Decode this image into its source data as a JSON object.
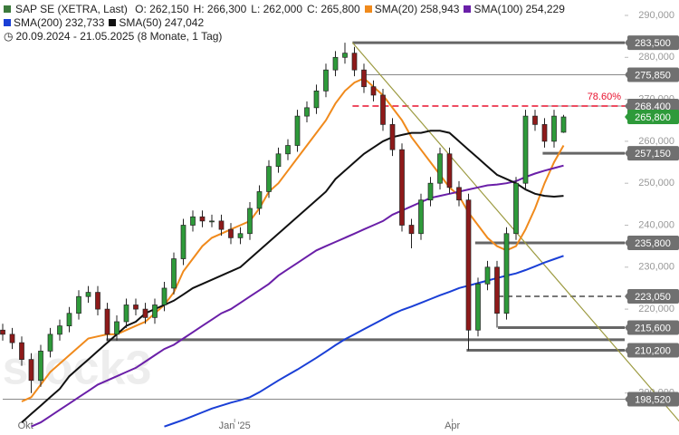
{
  "chart_data": {
    "type": "candlestick",
    "title": "SAP SE (XETRA, Last)",
    "quote": [
      {
        "value": 262.15,
        "label": "O: 262,150"
      },
      {
        "value": 266.3,
        "label": "H: 266,300"
      },
      {
        "value": 262.0,
        "label": "L: 262,000"
      },
      {
        "value": 265.8,
        "label": "C: 265,800"
      }
    ],
    "period": "20.09.2024 - 21.05.2025 (8 Monate, 1 Tag)",
    "watermark": "stock3",
    "up_color": "#2e9a3a",
    "down_color": "#8e1a1a",
    "open": [
      215,
      214,
      212,
      208,
      203,
      210,
      214,
      216,
      219,
      223,
      224,
      220,
      214,
      217,
      221,
      220,
      218,
      221,
      225,
      232,
      240,
      242,
      241,
      241,
      239,
      237,
      238,
      244,
      248,
      254,
      257,
      259,
      266,
      268,
      272,
      277,
      280,
      281,
      277,
      273,
      271,
      264,
      258,
      240,
      238,
      246,
      250,
      257,
      249,
      246,
      215,
      226,
      230,
      219,
      238,
      250,
      266,
      264,
      260,
      262.15
    ],
    "high": [
      216.5,
      215.5,
      213.5,
      209.5,
      211.5,
      215.5,
      217.5,
      220.5,
      224.5,
      225.5,
      225.5,
      221.5,
      218.5,
      222.5,
      222.5,
      221.5,
      222.5,
      226.5,
      233.5,
      241.5,
      243.5,
      243.5,
      242.5,
      242.5,
      240.5,
      239.5,
      245.5,
      249.5,
      255.5,
      258.5,
      260.5,
      267.5,
      269.5,
      273.5,
      278.5,
      281.5,
      283.5,
      282.5,
      278.5,
      274.5,
      272.5,
      265.5,
      259.5,
      241.5,
      247.5,
      251.5,
      258.5,
      258.5,
      250.5,
      247.5,
      227.5,
      231.5,
      231.5,
      239.5,
      251.5,
      267.5,
      267.5,
      265.5,
      267.5,
      266.3
    ],
    "low": [
      212.5,
      210.5,
      206.5,
      200,
      201.5,
      208.5,
      212.5,
      214.5,
      217.5,
      221.5,
      218.5,
      212.5,
      212.5,
      215.5,
      218.5,
      216.5,
      216.5,
      219.5,
      223.5,
      230.5,
      238.5,
      239.5,
      239.5,
      237.5,
      235.5,
      235.5,
      236.5,
      242.5,
      246.5,
      252.5,
      255.5,
      257.5,
      264.5,
      266.5,
      270.5,
      275.5,
      278.5,
      275.5,
      271.5,
      269.5,
      262.5,
      256.5,
      238.5,
      234.5,
      236.5,
      244.5,
      248.5,
      247.5,
      244.5,
      210.2,
      213.5,
      224.5,
      215.6,
      217.5,
      236.5,
      248.5,
      262.5,
      258.5,
      258.5,
      262.0
    ],
    "close": [
      214,
      212,
      208,
      203,
      210,
      214,
      216,
      219,
      223,
      224,
      220,
      214,
      217,
      221,
      220,
      218,
      221,
      225,
      232,
      240,
      242,
      241,
      241,
      239,
      237,
      238,
      244,
      248,
      254,
      257,
      259,
      266,
      268,
      272,
      277,
      280,
      281,
      277,
      273,
      271,
      264,
      258,
      240,
      238,
      246,
      250,
      257,
      249,
      246,
      215,
      226,
      230,
      219,
      238,
      250,
      266,
      264,
      260,
      266,
      265.8
    ],
    "series": [
      {
        "name": "SMA(20)",
        "color": "#f08a1c",
        "last": {
          "value": 258.943,
          "label": "258,943"
        },
        "values": [
          null,
          null,
          198,
          199,
          202,
          205,
          207,
          209,
          211,
          213,
          213.5,
          214,
          214,
          215,
          216,
          217,
          219,
          221,
          224,
          229,
          232,
          235,
          237,
          238,
          239,
          240,
          241,
          244,
          248,
          250,
          253,
          256,
          259,
          262,
          265,
          269,
          272,
          274,
          275,
          273,
          271,
          268,
          265,
          261,
          258,
          255,
          252,
          249,
          247,
          243,
          240,
          237,
          235,
          234,
          235,
          239,
          244,
          250,
          255,
          259
        ]
      },
      {
        "name": "SMA(100)",
        "color": "#6a1fa8",
        "last": {
          "value": 254.229,
          "label": "254,229"
        },
        "values": [
          null,
          null,
          null,
          192,
          193,
          194.5,
          196,
          197.5,
          199,
          200.5,
          202,
          203,
          204,
          205,
          206,
          207.5,
          209,
          210.5,
          211.5,
          213,
          214.5,
          216,
          217.5,
          219,
          220,
          221.5,
          223,
          224.5,
          226,
          228,
          229.5,
          231,
          232.5,
          234,
          235,
          236,
          237,
          238,
          239,
          240,
          241,
          242.5,
          243.5,
          244.5,
          245.5,
          246.5,
          247,
          247.5,
          248,
          248.5,
          249,
          249.5,
          249.7,
          250,
          250.5,
          251.5,
          252.3,
          253,
          253.6,
          254.2
        ]
      },
      {
        "name": "SMA(200)",
        "color": "#1a3fd6",
        "last": {
          "value": 232.733,
          "label": "232,733"
        },
        "values": [
          null,
          null,
          null,
          null,
          null,
          null,
          null,
          null,
          null,
          null,
          null,
          null,
          null,
          null,
          null,
          null,
          null,
          192,
          192.8,
          193.6,
          194.5,
          195.4,
          196.3,
          197,
          197.7,
          198.3,
          199,
          200.2,
          201.6,
          203,
          204.3,
          205.6,
          207,
          208.4,
          209.9,
          211.4,
          212.8,
          214,
          215.2,
          216.4,
          217.6,
          218.8,
          219.8,
          220.6,
          221.5,
          222.4,
          223.3,
          224.1,
          225,
          225.6,
          226.2,
          226.8,
          227.4,
          228,
          228.5,
          229.3,
          230.2,
          231.1,
          231.9,
          232.7
        ]
      },
      {
        "name": "SMA(50)",
        "color": "#111111",
        "last": {
          "value": 247.042,
          "label": "247,042"
        },
        "values": [
          null,
          null,
          193,
          195,
          197,
          199,
          201,
          204,
          206,
          208,
          210,
          212,
          214,
          216,
          217,
          219,
          220,
          221,
          222,
          223.5,
          225,
          226,
          227,
          228,
          229,
          230,
          232,
          234,
          236,
          238,
          240,
          242,
          244,
          246,
          248,
          251,
          253,
          255,
          257,
          258.5,
          260,
          261,
          261.5,
          262,
          262,
          262.5,
          262.5,
          262,
          260,
          258,
          256,
          254,
          252,
          251,
          250,
          248.5,
          247.5,
          247,
          246.8,
          247
        ]
      }
    ],
    "levels": [
      {
        "value": 283.5,
        "label": "283,500",
        "from": 36.8,
        "style": "bold"
      },
      {
        "value": 275.85,
        "label": "275,850",
        "from": 37.8,
        "style": "thin"
      },
      {
        "value": 268.4,
        "label": "268,400",
        "from": 56.6,
        "style": "thin"
      },
      {
        "value": 265.8,
        "label": "265,800",
        "from": 59,
        "style": "current"
      },
      {
        "value": 257.15,
        "label": "257,150",
        "from": 56.8,
        "style": "bold"
      },
      {
        "value": 235.8,
        "label": "235,800",
        "from": 49.7,
        "style": "bold"
      },
      {
        "value": 223.05,
        "label": "223,050",
        "from": 52.1,
        "style": "dashed"
      },
      {
        "value": 215.6,
        "label": "215,600",
        "from": 52.1,
        "style": "bold"
      },
      {
        "value": 212.7,
        "from": 10.9,
        "style": "bold"
      },
      {
        "value": 210.2,
        "label": "210,200",
        "from": 48.8,
        "style": "bold"
      },
      {
        "value": 198.52,
        "label": "198,520",
        "from": 0,
        "style": "thin"
      }
    ],
    "fib": {
      "level": 268.4,
      "from": 36.8,
      "color": "#e8112d",
      "ratio": {
        "value": 78.6,
        "label": "78.60%"
      }
    },
    "trendline": {
      "from": {
        "x": 36.8,
        "y": 283.5
      },
      "to": {
        "x": 71.2,
        "y": 193.2
      },
      "color": "#9c9a40"
    },
    "xticks": [
      {
        "value": 2.4,
        "label": "Okt"
      },
      {
        "value": 24.4,
        "label": "Jan '25"
      },
      {
        "value": 47.3,
        "label": "Apr"
      }
    ],
    "ylim": [
      190.0,
      293.67
    ],
    "yticks": [
      {
        "value": 200,
        "label": "200,000"
      },
      {
        "value": 210,
        "label": "210,000"
      },
      {
        "value": 220,
        "label": "220,000"
      },
      {
        "value": 230,
        "label": "230,000"
      },
      {
        "value": 240,
        "label": "240,000"
      },
      {
        "value": 250,
        "label": "250,000"
      },
      {
        "value": 260,
        "label": "260,000"
      },
      {
        "value": 270,
        "label": "270,000"
      },
      {
        "value": 280,
        "label": "280,000"
      },
      {
        "value": 290,
        "label": "290,000"
      }
    ]
  }
}
